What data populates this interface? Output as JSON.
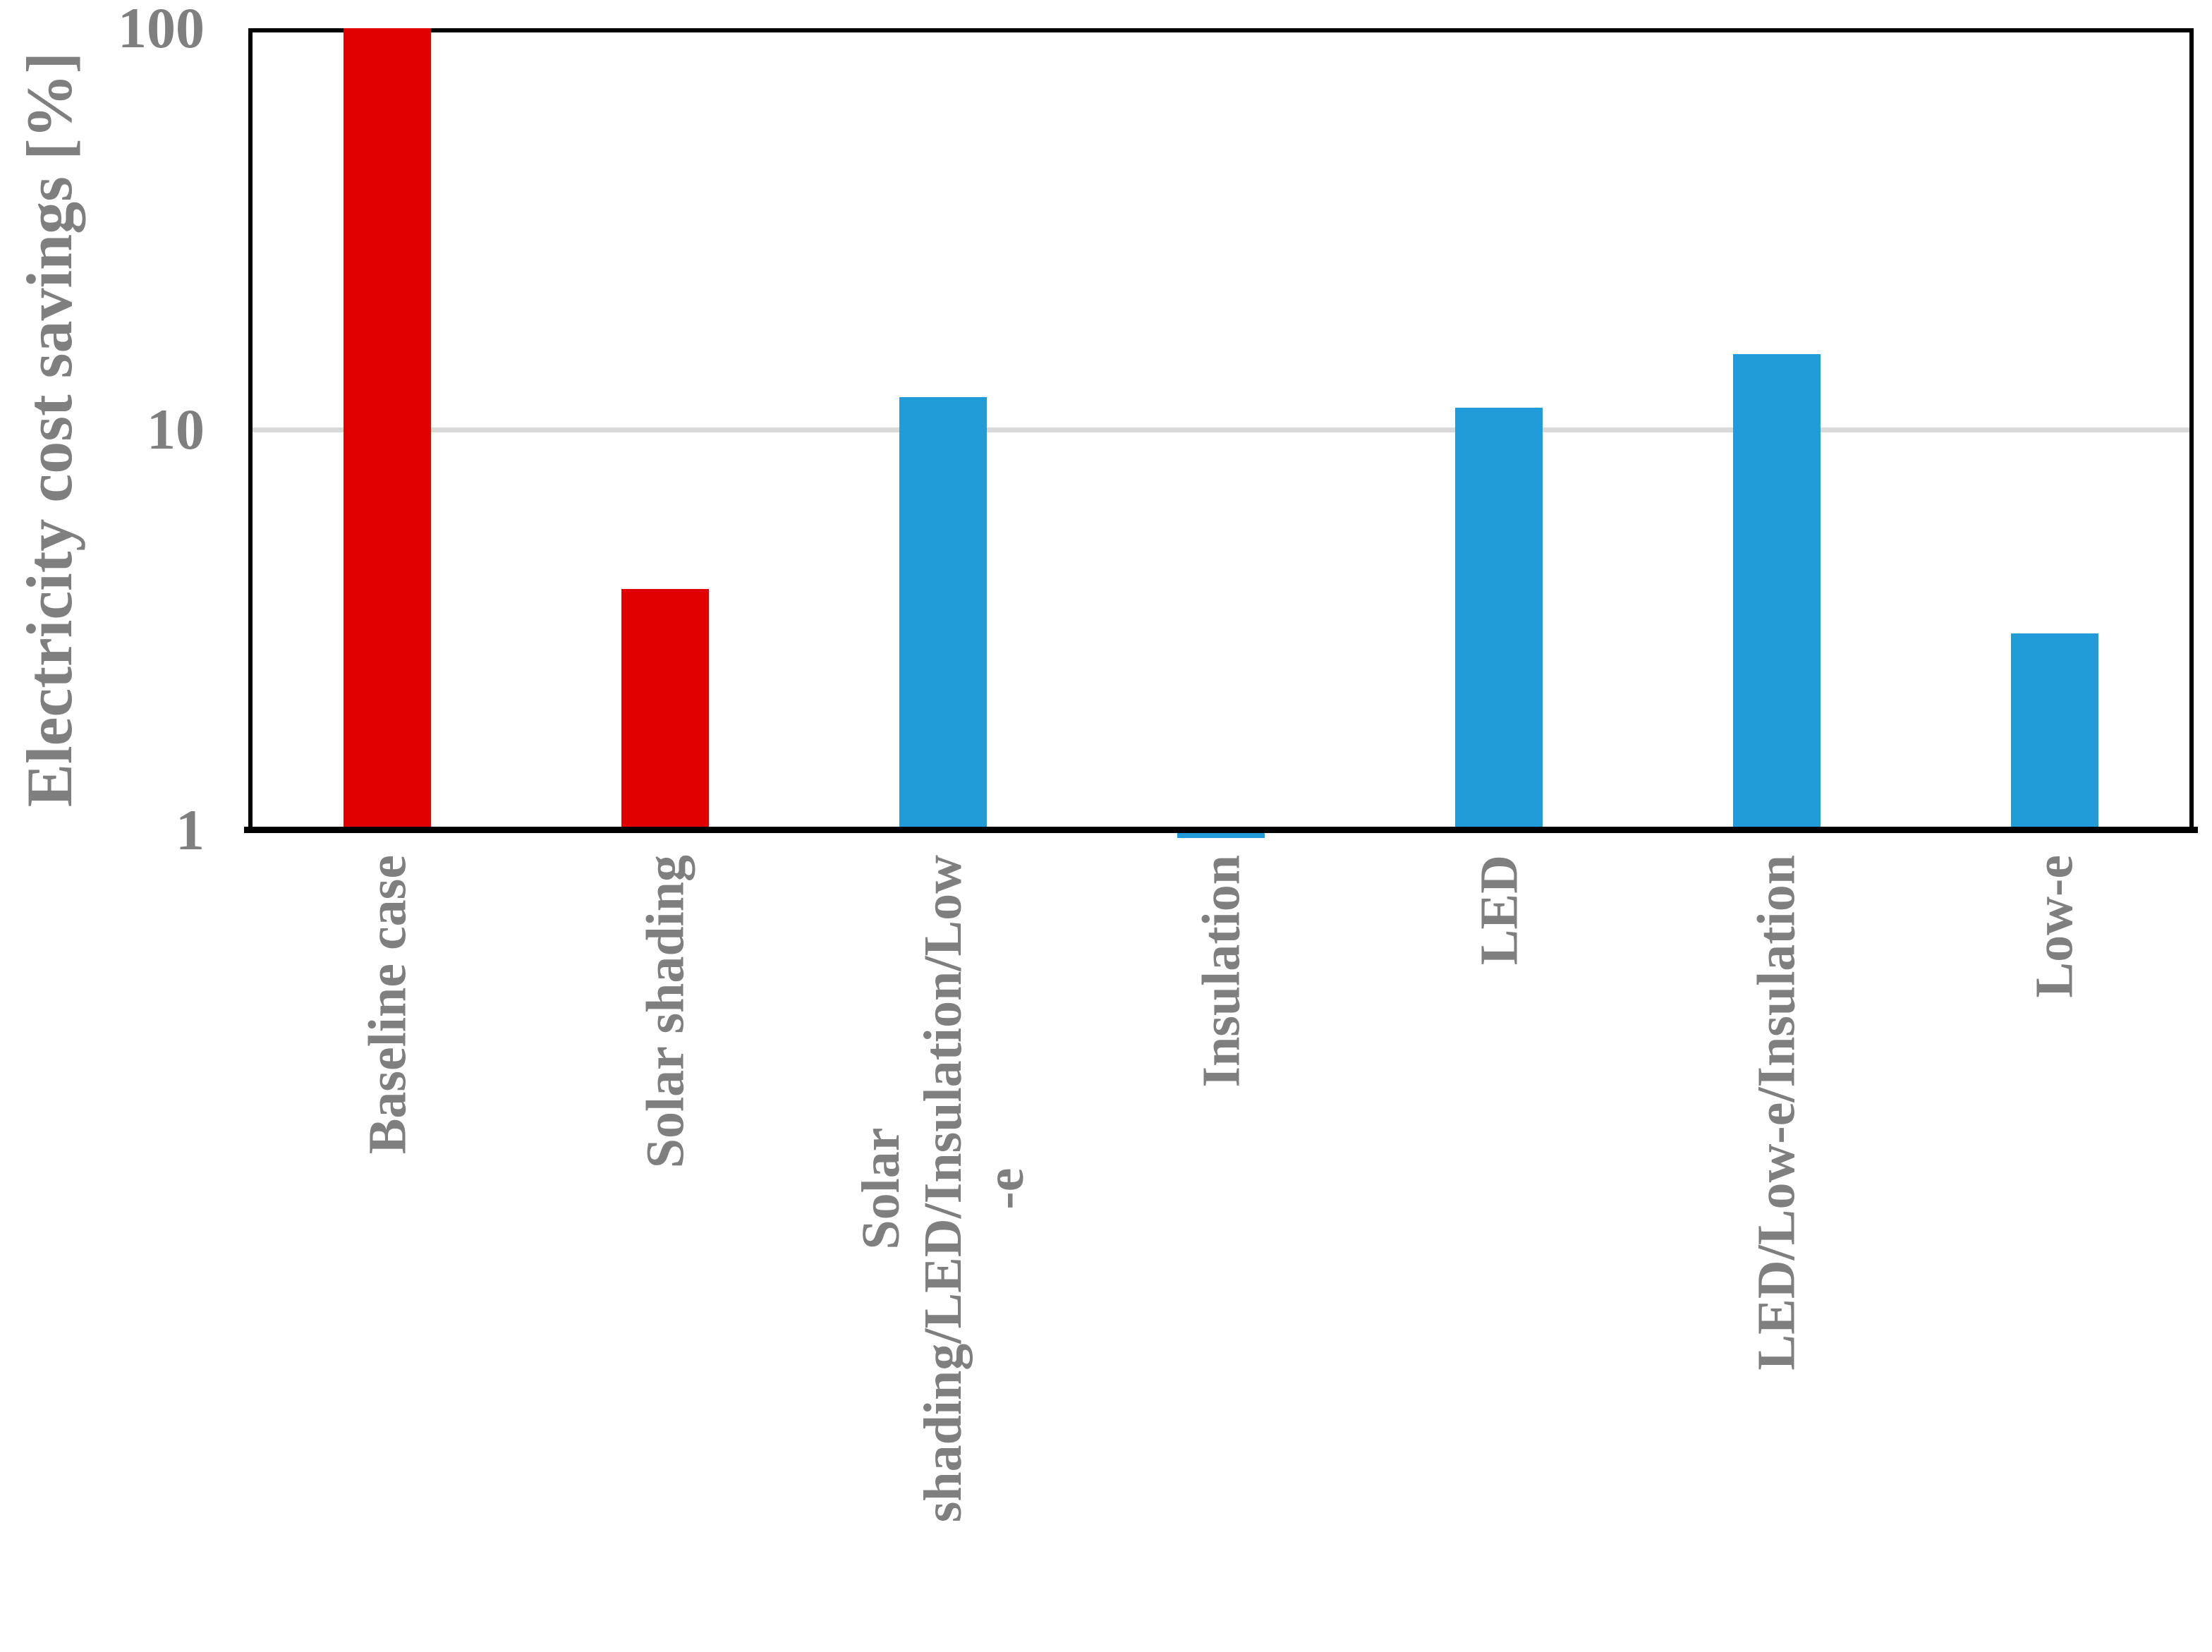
{
  "chart_data": {
    "type": "bar",
    "title": "",
    "xlabel": "",
    "ylabel": "Electricity cost savings [%]",
    "y_scale": "log10",
    "ylim": [
      1,
      100
    ],
    "grid": "single horizontal gridline at y=10, color #d9d9d9",
    "legend": "none",
    "y_ticks": [
      {
        "label": "100",
        "value": 100
      },
      {
        "label": "10",
        "value": 10
      },
      {
        "label": "1",
        "value": 1
      }
    ],
    "categories": [
      "Baseline case",
      "Solar shading",
      "Solar shading/LED/Insulation/Low-e",
      "Insulation",
      "LED",
      "LED/Low-e/Insulation",
      "Low-e"
    ],
    "category_label_lines": [
      [
        "Baseline case"
      ],
      [
        "Solar shading"
      ],
      [
        "Solar",
        "shading/LED/Insulation/Low",
        "-e"
      ],
      [
        "Insulation"
      ],
      [
        "LED"
      ],
      [
        "LED/Low-e/Insulation"
      ],
      [
        "Low-e"
      ]
    ],
    "values": [
      100,
      4,
      12,
      1.02,
      11.3,
      15.4,
      3.1
    ],
    "bar_colors": [
      "#e00000",
      "#e00000",
      "#219cd8",
      "#219cd8",
      "#219cd8",
      "#219cd8",
      "#219cd8"
    ],
    "colors": {
      "bar_red": "#e00000",
      "bar_blue": "#219cd8",
      "text_gray": "#7f7f7f",
      "gridline": "#d9d9d9",
      "axis_black": "#000000",
      "background": "#ffffff"
    }
  }
}
